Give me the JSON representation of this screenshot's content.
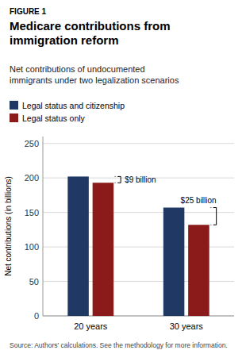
{
  "chart_data": {
    "type": "bar",
    "figure_label": "FIGURE 1",
    "title": "Medicare contributions from\nimmigration reform",
    "subtitle": "Net contributions of undocumented\nimmigrants under two legalization scenarios",
    "source": "Source: Authors' calculations. See the methodology for more information.",
    "ylabel": "Net contributions (in billions)",
    "categories": [
      "20 years",
      "30 years"
    ],
    "series": [
      {
        "name": "Legal status and citizenship",
        "color": "#1f3864",
        "values": [
          202,
          157
        ]
      },
      {
        "name": "Legal status only",
        "color": "#8b1a1a",
        "values": [
          193,
          132
        ]
      }
    ],
    "annotations": [
      "$9 billion",
      "$25 billion"
    ],
    "ylim": [
      0,
      260
    ],
    "yticks": [
      0,
      50,
      100,
      150,
      200,
      250
    ],
    "grid": true,
    "legend": "top-left"
  }
}
